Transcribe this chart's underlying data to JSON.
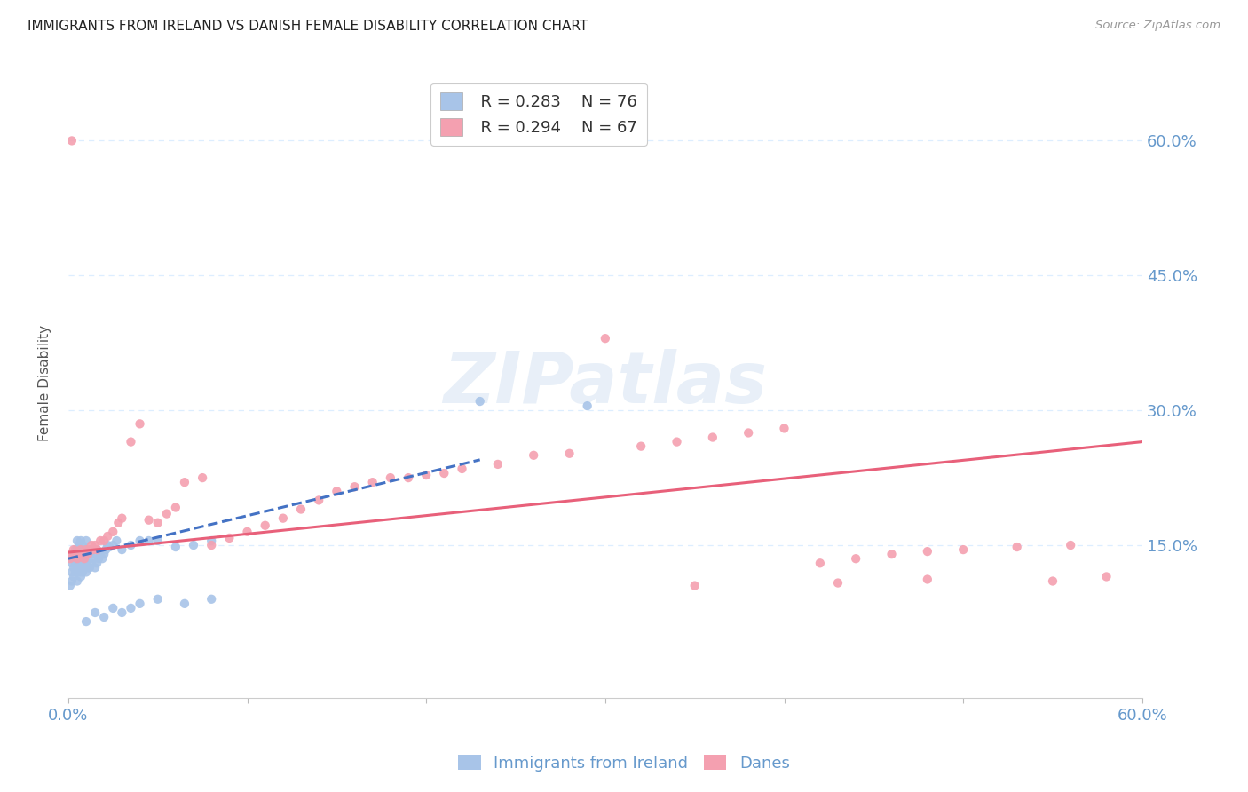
{
  "title": "IMMIGRANTS FROM IRELAND VS DANISH FEMALE DISABILITY CORRELATION CHART",
  "source": "Source: ZipAtlas.com",
  "ylabel": "Female Disability",
  "xlim": [
    0.0,
    0.6
  ],
  "ylim": [
    -0.02,
    0.68
  ],
  "yticks": [
    0.15,
    0.3,
    0.45,
    0.6
  ],
  "ytick_labels": [
    "15.0%",
    "30.0%",
    "45.0%",
    "60.0%"
  ],
  "xticks": [
    0.0,
    0.1,
    0.2,
    0.3,
    0.4,
    0.5,
    0.6
  ],
  "xtick_labels": [
    "0.0%",
    "",
    "",
    "",
    "",
    "",
    "60.0%"
  ],
  "legend_R1": "R = 0.283",
  "legend_N1": "N = 76",
  "legend_R2": "R = 0.294",
  "legend_N2": "N = 67",
  "blue_color": "#a8c4e8",
  "pink_color": "#f4a0b0",
  "blue_line_color": "#4472c4",
  "pink_line_color": "#e8607a",
  "axis_color": "#6699cc",
  "grid_color": "#ddeeff",
  "ireland_x": [
    0.001,
    0.002,
    0.002,
    0.002,
    0.003,
    0.003,
    0.003,
    0.003,
    0.004,
    0.004,
    0.004,
    0.005,
    0.005,
    0.005,
    0.005,
    0.005,
    0.006,
    0.006,
    0.006,
    0.006,
    0.007,
    0.007,
    0.007,
    0.007,
    0.007,
    0.008,
    0.008,
    0.008,
    0.008,
    0.009,
    0.009,
    0.009,
    0.01,
    0.01,
    0.01,
    0.01,
    0.011,
    0.011,
    0.012,
    0.012,
    0.013,
    0.013,
    0.014,
    0.015,
    0.015,
    0.016,
    0.016,
    0.017,
    0.018,
    0.019,
    0.02,
    0.021,
    0.022,
    0.023,
    0.025,
    0.027,
    0.03,
    0.035,
    0.04,
    0.045,
    0.05,
    0.06,
    0.07,
    0.08,
    0.01,
    0.015,
    0.02,
    0.025,
    0.03,
    0.035,
    0.04,
    0.05,
    0.065,
    0.08,
    0.23,
    0.29
  ],
  "ireland_y": [
    0.105,
    0.11,
    0.13,
    0.12,
    0.115,
    0.125,
    0.135,
    0.14,
    0.12,
    0.13,
    0.145,
    0.11,
    0.125,
    0.135,
    0.145,
    0.155,
    0.12,
    0.13,
    0.14,
    0.15,
    0.115,
    0.125,
    0.135,
    0.145,
    0.155,
    0.12,
    0.13,
    0.14,
    0.15,
    0.125,
    0.135,
    0.145,
    0.12,
    0.13,
    0.14,
    0.155,
    0.125,
    0.14,
    0.125,
    0.14,
    0.13,
    0.145,
    0.135,
    0.125,
    0.14,
    0.13,
    0.145,
    0.135,
    0.14,
    0.135,
    0.14,
    0.145,
    0.15,
    0.148,
    0.15,
    0.155,
    0.145,
    0.15,
    0.155,
    0.155,
    0.155,
    0.148,
    0.15,
    0.155,
    0.065,
    0.075,
    0.07,
    0.08,
    0.075,
    0.08,
    0.085,
    0.09,
    0.085,
    0.09,
    0.31,
    0.305
  ],
  "danes_x": [
    0.001,
    0.002,
    0.003,
    0.004,
    0.005,
    0.006,
    0.007,
    0.008,
    0.009,
    0.01,
    0.011,
    0.012,
    0.013,
    0.014,
    0.015,
    0.016,
    0.018,
    0.02,
    0.022,
    0.025,
    0.028,
    0.03,
    0.035,
    0.04,
    0.045,
    0.05,
    0.055,
    0.06,
    0.065,
    0.075,
    0.08,
    0.09,
    0.1,
    0.11,
    0.12,
    0.13,
    0.14,
    0.15,
    0.16,
    0.17,
    0.18,
    0.19,
    0.2,
    0.21,
    0.22,
    0.24,
    0.26,
    0.28,
    0.3,
    0.32,
    0.34,
    0.36,
    0.38,
    0.4,
    0.42,
    0.44,
    0.46,
    0.48,
    0.5,
    0.53,
    0.56,
    0.002,
    0.35,
    0.58,
    0.55,
    0.43,
    0.48
  ],
  "danes_y": [
    0.135,
    0.14,
    0.145,
    0.14,
    0.135,
    0.14,
    0.145,
    0.14,
    0.135,
    0.145,
    0.14,
    0.145,
    0.15,
    0.145,
    0.15,
    0.145,
    0.155,
    0.155,
    0.16,
    0.165,
    0.175,
    0.18,
    0.265,
    0.285,
    0.178,
    0.175,
    0.185,
    0.192,
    0.22,
    0.225,
    0.15,
    0.158,
    0.165,
    0.172,
    0.18,
    0.19,
    0.2,
    0.21,
    0.215,
    0.22,
    0.225,
    0.225,
    0.228,
    0.23,
    0.235,
    0.24,
    0.25,
    0.252,
    0.38,
    0.26,
    0.265,
    0.27,
    0.275,
    0.28,
    0.13,
    0.135,
    0.14,
    0.143,
    0.145,
    0.148,
    0.15,
    0.6,
    0.105,
    0.115,
    0.11,
    0.108,
    0.112
  ],
  "ireland_line_x0": 0.0,
  "ireland_line_x1": 0.23,
  "ireland_line_y0": 0.135,
  "ireland_line_y1": 0.245,
  "danes_line_x0": 0.0,
  "danes_line_x1": 0.6,
  "danes_line_y0": 0.142,
  "danes_line_y1": 0.265
}
